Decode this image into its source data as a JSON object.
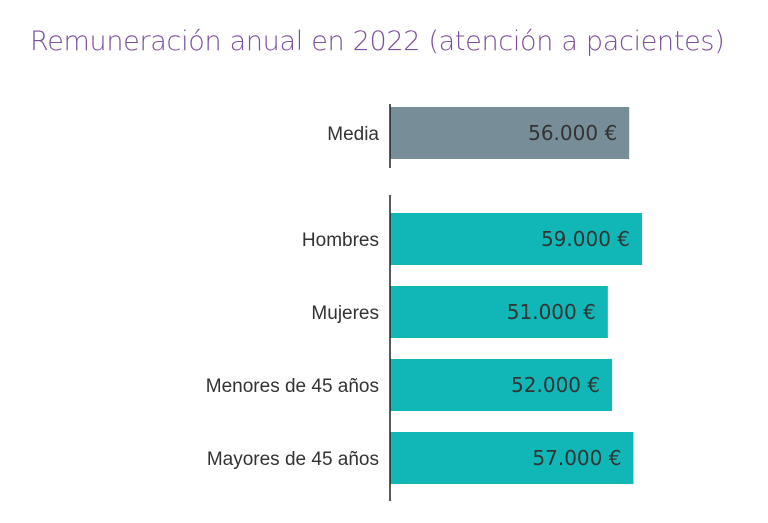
{
  "chart_data": {
    "type": "bar",
    "orientation": "horizontal",
    "title": "Remuneración anual en 2022 (atención a pacientes)",
    "categories": [
      "Media",
      "Hombres",
      "Mujeres",
      "Menores de 45 años",
      "Mayores de 45 años"
    ],
    "values": [
      56000,
      59000,
      51000,
      52000,
      57000
    ],
    "data_labels": [
      "56.000 €",
      "59.000 €",
      "51.000 €",
      "52.000 €",
      "57.000 €"
    ],
    "unit": "€",
    "xlim": [
      0,
      59000
    ],
    "grid": false,
    "colors": {
      "Media": "#778d98",
      "others": "#10b7b6",
      "title": "#7b4f9c"
    }
  }
}
